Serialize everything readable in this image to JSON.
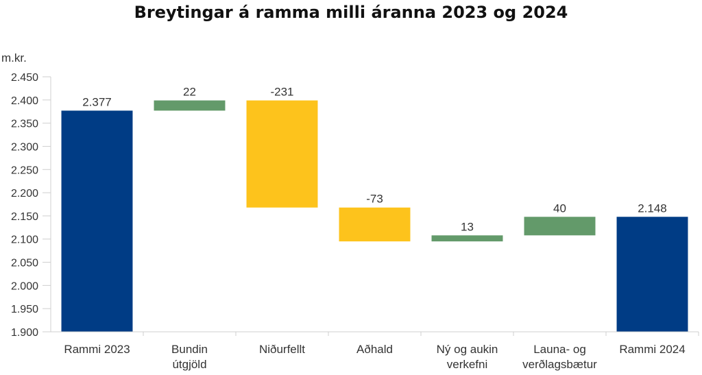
{
  "chart_data": {
    "type": "bar",
    "subtype": "waterfall",
    "title": "Breytingar á ramma milli áranna 2023 og 2024",
    "ylabel": "m.kr.",
    "ylim": [
      1900,
      2450
    ],
    "yticks": [
      1900,
      1950,
      2000,
      2050,
      2100,
      2150,
      2200,
      2250,
      2300,
      2350,
      2400,
      2450
    ],
    "ytick_labels": [
      "1.900",
      "1.950",
      "2.000",
      "2.050",
      "2.100",
      "2.150",
      "2.200",
      "2.250",
      "2.300",
      "2.350",
      "2.400",
      "2.450"
    ],
    "grid": false,
    "legend": "none",
    "categories": [
      [
        "Rammi 2023"
      ],
      [
        "Bundin",
        "útgjöld"
      ],
      [
        "Niðurfellt"
      ],
      [
        "Aðhald"
      ],
      [
        "Ný og aukin",
        "verkefni"
      ],
      [
        "Launa- og",
        "verðlagsbætur"
      ],
      [
        "Rammi 2024"
      ]
    ],
    "bars": [
      {
        "kind": "total",
        "start": 1900,
        "end": 2377,
        "label": "2.377"
      },
      {
        "kind": "increase",
        "start": 2377,
        "end": 2399,
        "label": "22"
      },
      {
        "kind": "decrease",
        "start": 2399,
        "end": 2168,
        "label": "-231"
      },
      {
        "kind": "decrease",
        "start": 2168,
        "end": 2095,
        "label": "-73"
      },
      {
        "kind": "increase",
        "start": 2095,
        "end": 2108,
        "label": "13"
      },
      {
        "kind": "increase",
        "start": 2108,
        "end": 2148,
        "label": "40"
      },
      {
        "kind": "total",
        "start": 1900,
        "end": 2148,
        "label": "2.148"
      }
    ],
    "colors": {
      "total": "#003c85",
      "increase": "#639a6a",
      "decrease": "#fdc31c",
      "axis": "#cfcfcf"
    }
  }
}
